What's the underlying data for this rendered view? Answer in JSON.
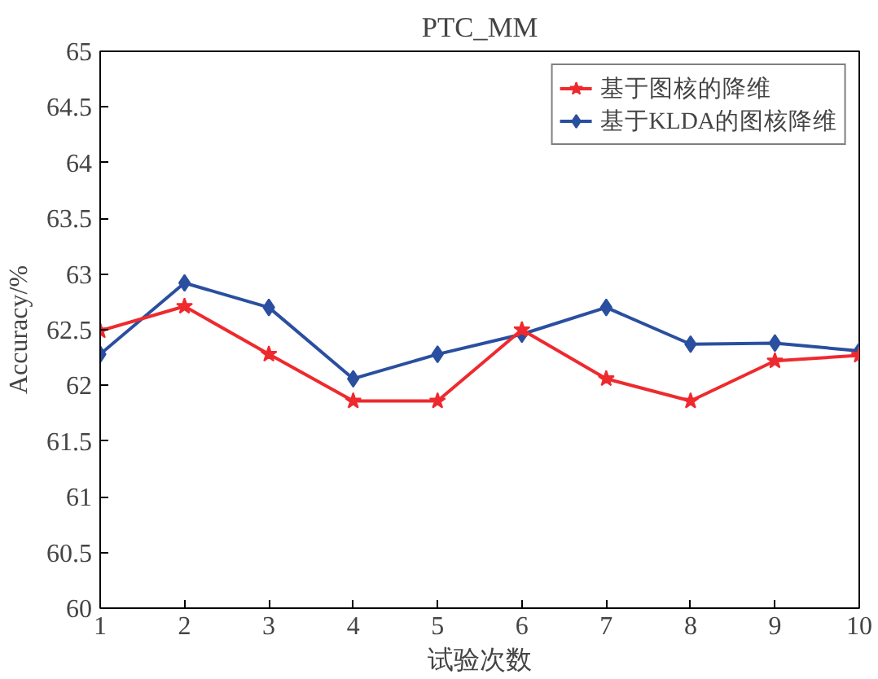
{
  "chart_data": {
    "type": "line",
    "title": "PTC_MM",
    "xlabel": "试验次数",
    "ylabel": "Accuracy/%",
    "x": [
      1,
      2,
      3,
      4,
      5,
      6,
      7,
      8,
      9,
      10
    ],
    "series": [
      {
        "name": "基于图核的降维",
        "color": "#ee2a2e",
        "marker": "star",
        "values": [
          62.49,
          62.71,
          62.28,
          61.86,
          61.86,
          62.5,
          62.06,
          61.86,
          62.22,
          62.27
        ]
      },
      {
        "name": "基于KLDA的图核降维",
        "color": "#2a4fa0",
        "marker": "diamond",
        "values": [
          62.28,
          62.92,
          62.7,
          62.06,
          62.28,
          62.46,
          62.7,
          62.37,
          62.38,
          62.31
        ]
      }
    ],
    "xlim": [
      1,
      10
    ],
    "xticks": [
      1,
      2,
      3,
      4,
      5,
      6,
      7,
      8,
      9,
      10
    ],
    "ylim": [
      60,
      65
    ],
    "yticks": [
      60,
      60.5,
      61,
      61.5,
      62,
      62.5,
      63,
      63.5,
      64,
      64.5,
      65
    ],
    "grid": false,
    "legend": "top right",
    "line_style": "solid"
  }
}
